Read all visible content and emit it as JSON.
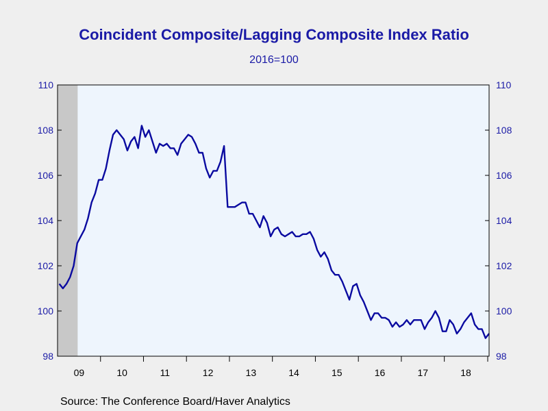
{
  "chart_data": {
    "type": "line",
    "title": "Coincident Composite/Lagging Composite Index Ratio",
    "subtitle": "2016=100",
    "source": "Source:  The Conference Board/Haver Analytics",
    "y_ticks": [
      "98",
      "100",
      "102",
      "104",
      "106",
      "108",
      "110"
    ],
    "x_tick_labels": [
      "09",
      "10",
      "11",
      "12",
      "13",
      "14",
      "15",
      "16",
      "17",
      "18"
    ],
    "ylim": [
      98,
      110
    ],
    "x_start": "2009-01",
    "recession_shade": {
      "start": "2009-01",
      "end": "2009-06"
    },
    "colors": {
      "line": "#0a0aa0",
      "plot_bg": "#eef5fd",
      "recession": "#c8c8c8",
      "axis_text": "#1a1aa6"
    },
    "series": [
      {
        "values": [
          101.2,
          101.0,
          101.2,
          101.5,
          102.0,
          103.0,
          103.3,
          103.6,
          104.1,
          104.8,
          105.2,
          105.8,
          105.8,
          106.3,
          107.1,
          107.8,
          108.0,
          107.8,
          107.6,
          107.1,
          107.5,
          107.7,
          107.2,
          108.2,
          107.7,
          108.0,
          107.5,
          107.0,
          107.4,
          107.3,
          107.4,
          107.2,
          107.2,
          106.9,
          107.4,
          107.6,
          107.8,
          107.7,
          107.4,
          107.0,
          107.0,
          106.3,
          105.9,
          106.2,
          106.2,
          106.6,
          107.3,
          104.6,
          104.6,
          104.6,
          104.7,
          104.8,
          104.8,
          104.3,
          104.3,
          104.0,
          103.7,
          104.2,
          103.9,
          103.3,
          103.6,
          103.7,
          103.4,
          103.3,
          103.4,
          103.5,
          103.3,
          103.3,
          103.4,
          103.4,
          103.5,
          103.2,
          102.7,
          102.4,
          102.6,
          102.3,
          101.8,
          101.6,
          101.6,
          101.3,
          100.9,
          100.5,
          101.1,
          101.2,
          100.7,
          100.4,
          100.0,
          99.6,
          99.9,
          99.9,
          99.7,
          99.7,
          99.6,
          99.3,
          99.5,
          99.3,
          99.4,
          99.6,
          99.4,
          99.6,
          99.6,
          99.6,
          99.2,
          99.5,
          99.7,
          100.0,
          99.7,
          99.1,
          99.1,
          99.6,
          99.4,
          99.0,
          99.2,
          99.5,
          99.7,
          99.9,
          99.4,
          99.2,
          99.2,
          98.8,
          99.0
        ]
      }
    ]
  }
}
